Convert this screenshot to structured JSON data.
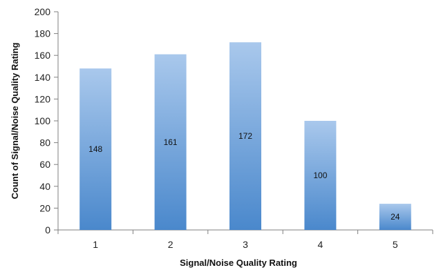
{
  "chart_data": {
    "type": "bar",
    "categories": [
      "1",
      "2",
      "3",
      "4",
      "5"
    ],
    "values": [
      148,
      161,
      172,
      100,
      24
    ],
    "data_labels": [
      "148",
      "161",
      "172",
      "100",
      "24"
    ],
    "title": "",
    "xlabel": "Signal/Noise Quality Rating",
    "ylabel": "Count of Signal/Noise Quality Rating",
    "ylim": [
      0,
      200
    ],
    "yticks": [
      "0",
      "20",
      "40",
      "60",
      "80",
      "100",
      "120",
      "140",
      "160",
      "180",
      "200"
    ],
    "grid": false,
    "legend": "none",
    "bar_color_top": "#a9c8ec",
    "bar_color_bottom": "#4a88cc"
  }
}
